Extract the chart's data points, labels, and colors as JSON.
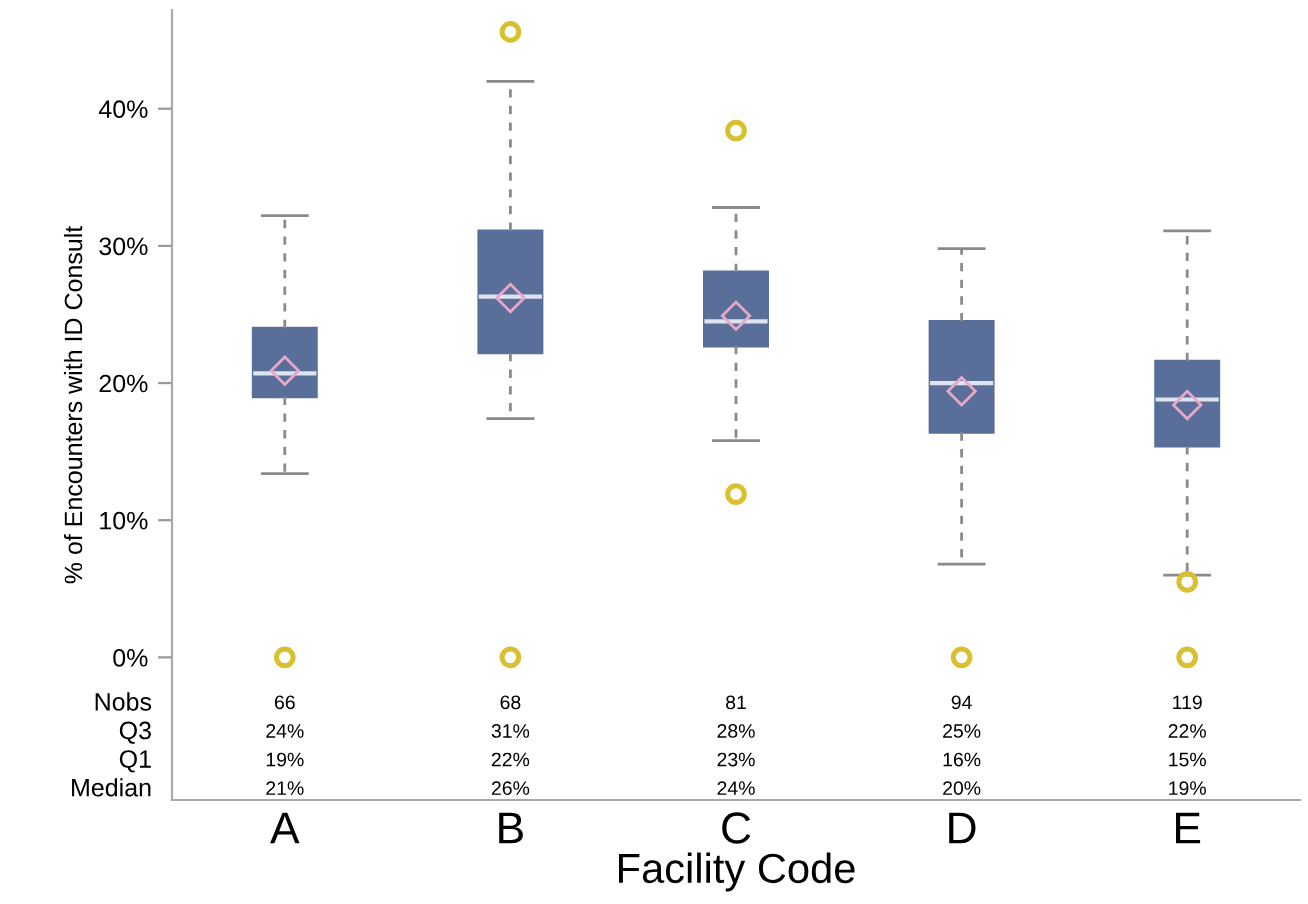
{
  "chart_data": {
    "type": "box",
    "ylabel": "% of Encounters with ID Consult",
    "xlabel": "Facility Code",
    "categories": [
      "A",
      "B",
      "C",
      "D",
      "E"
    ],
    "boxes": [
      {
        "low": 13.4,
        "q1": 19.0,
        "median": 20.7,
        "q3": 24.0,
        "high": 32.2,
        "mean": 20.9,
        "outliers": [
          0
        ]
      },
      {
        "low": 17.4,
        "q1": 22.2,
        "median": 26.3,
        "q3": 31.1,
        "high": 42.0,
        "mean": 26.2,
        "outliers": [
          45.6,
          0
        ]
      },
      {
        "low": 15.8,
        "q1": 22.7,
        "median": 24.5,
        "q3": 28.1,
        "high": 32.8,
        "mean": 24.9,
        "outliers": [
          38.4,
          11.9
        ]
      },
      {
        "low": 6.8,
        "q1": 16.4,
        "median": 20.0,
        "q3": 24.5,
        "high": 29.8,
        "mean": 19.4,
        "outliers": [
          0
        ]
      },
      {
        "low": 6.0,
        "q1": 15.4,
        "median": 18.8,
        "q3": 21.6,
        "high": 31.1,
        "mean": 18.4,
        "outliers": [
          5.5,
          0
        ]
      }
    ],
    "color": "#5a6e9a",
    "ylim": [
      -10.4,
      47.2
    ],
    "yticks": [
      {
        "value": 0,
        "label": "0%"
      },
      {
        "value": 10,
        "label": "10%"
      },
      {
        "value": 20,
        "label": "20%"
      },
      {
        "value": 30,
        "label": "30%"
      },
      {
        "value": 40,
        "label": "40%"
      }
    ],
    "grid": false,
    "annotations": [
      "Nobs",
      "66",
      "68",
      "81",
      "94",
      "119",
      "Q3",
      "24%",
      "31%",
      "28%",
      "25%",
      "22%",
      "Q1",
      "19%",
      "22%",
      "23%",
      "16%",
      "15%",
      "Median",
      "21%",
      "26%",
      "24%",
      "20%",
      "19%"
    ]
  }
}
